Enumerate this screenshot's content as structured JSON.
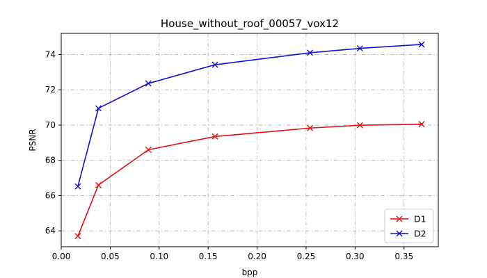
{
  "chart_data": {
    "type": "line",
    "title": "House_without_roof_00057_vox12",
    "xlabel": "bpp",
    "ylabel": "PSNR",
    "xlim": [
      0.0,
      0.385
    ],
    "ylim": [
      63.1,
      75.2
    ],
    "xticks": [
      0.0,
      0.05,
      0.1,
      0.15,
      0.2,
      0.25,
      0.3,
      0.35
    ],
    "xtick_labels": [
      "0.00",
      "0.05",
      "0.10",
      "0.15",
      "0.20",
      "0.25",
      "0.30",
      "0.35"
    ],
    "yticks": [
      64,
      66,
      68,
      70,
      72,
      74
    ],
    "ytick_labels": [
      "64",
      "66",
      "68",
      "70",
      "72",
      "74"
    ],
    "grid": true,
    "legend_position": "lower-right",
    "series": [
      {
        "name": "D1",
        "color": "#dd1111",
        "marker": "x",
        "x": [
          0.017,
          0.038,
          0.089,
          0.157,
          0.254,
          0.305,
          0.368
        ],
        "y": [
          63.7,
          66.6,
          68.6,
          69.35,
          69.83,
          69.99,
          70.05
        ]
      },
      {
        "name": "D2",
        "color": "#1111cc",
        "marker": "x",
        "x": [
          0.017,
          0.038,
          0.089,
          0.157,
          0.254,
          0.305,
          0.368
        ],
        "y": [
          66.52,
          70.95,
          72.36,
          73.42,
          74.1,
          74.35,
          74.57
        ]
      }
    ]
  }
}
